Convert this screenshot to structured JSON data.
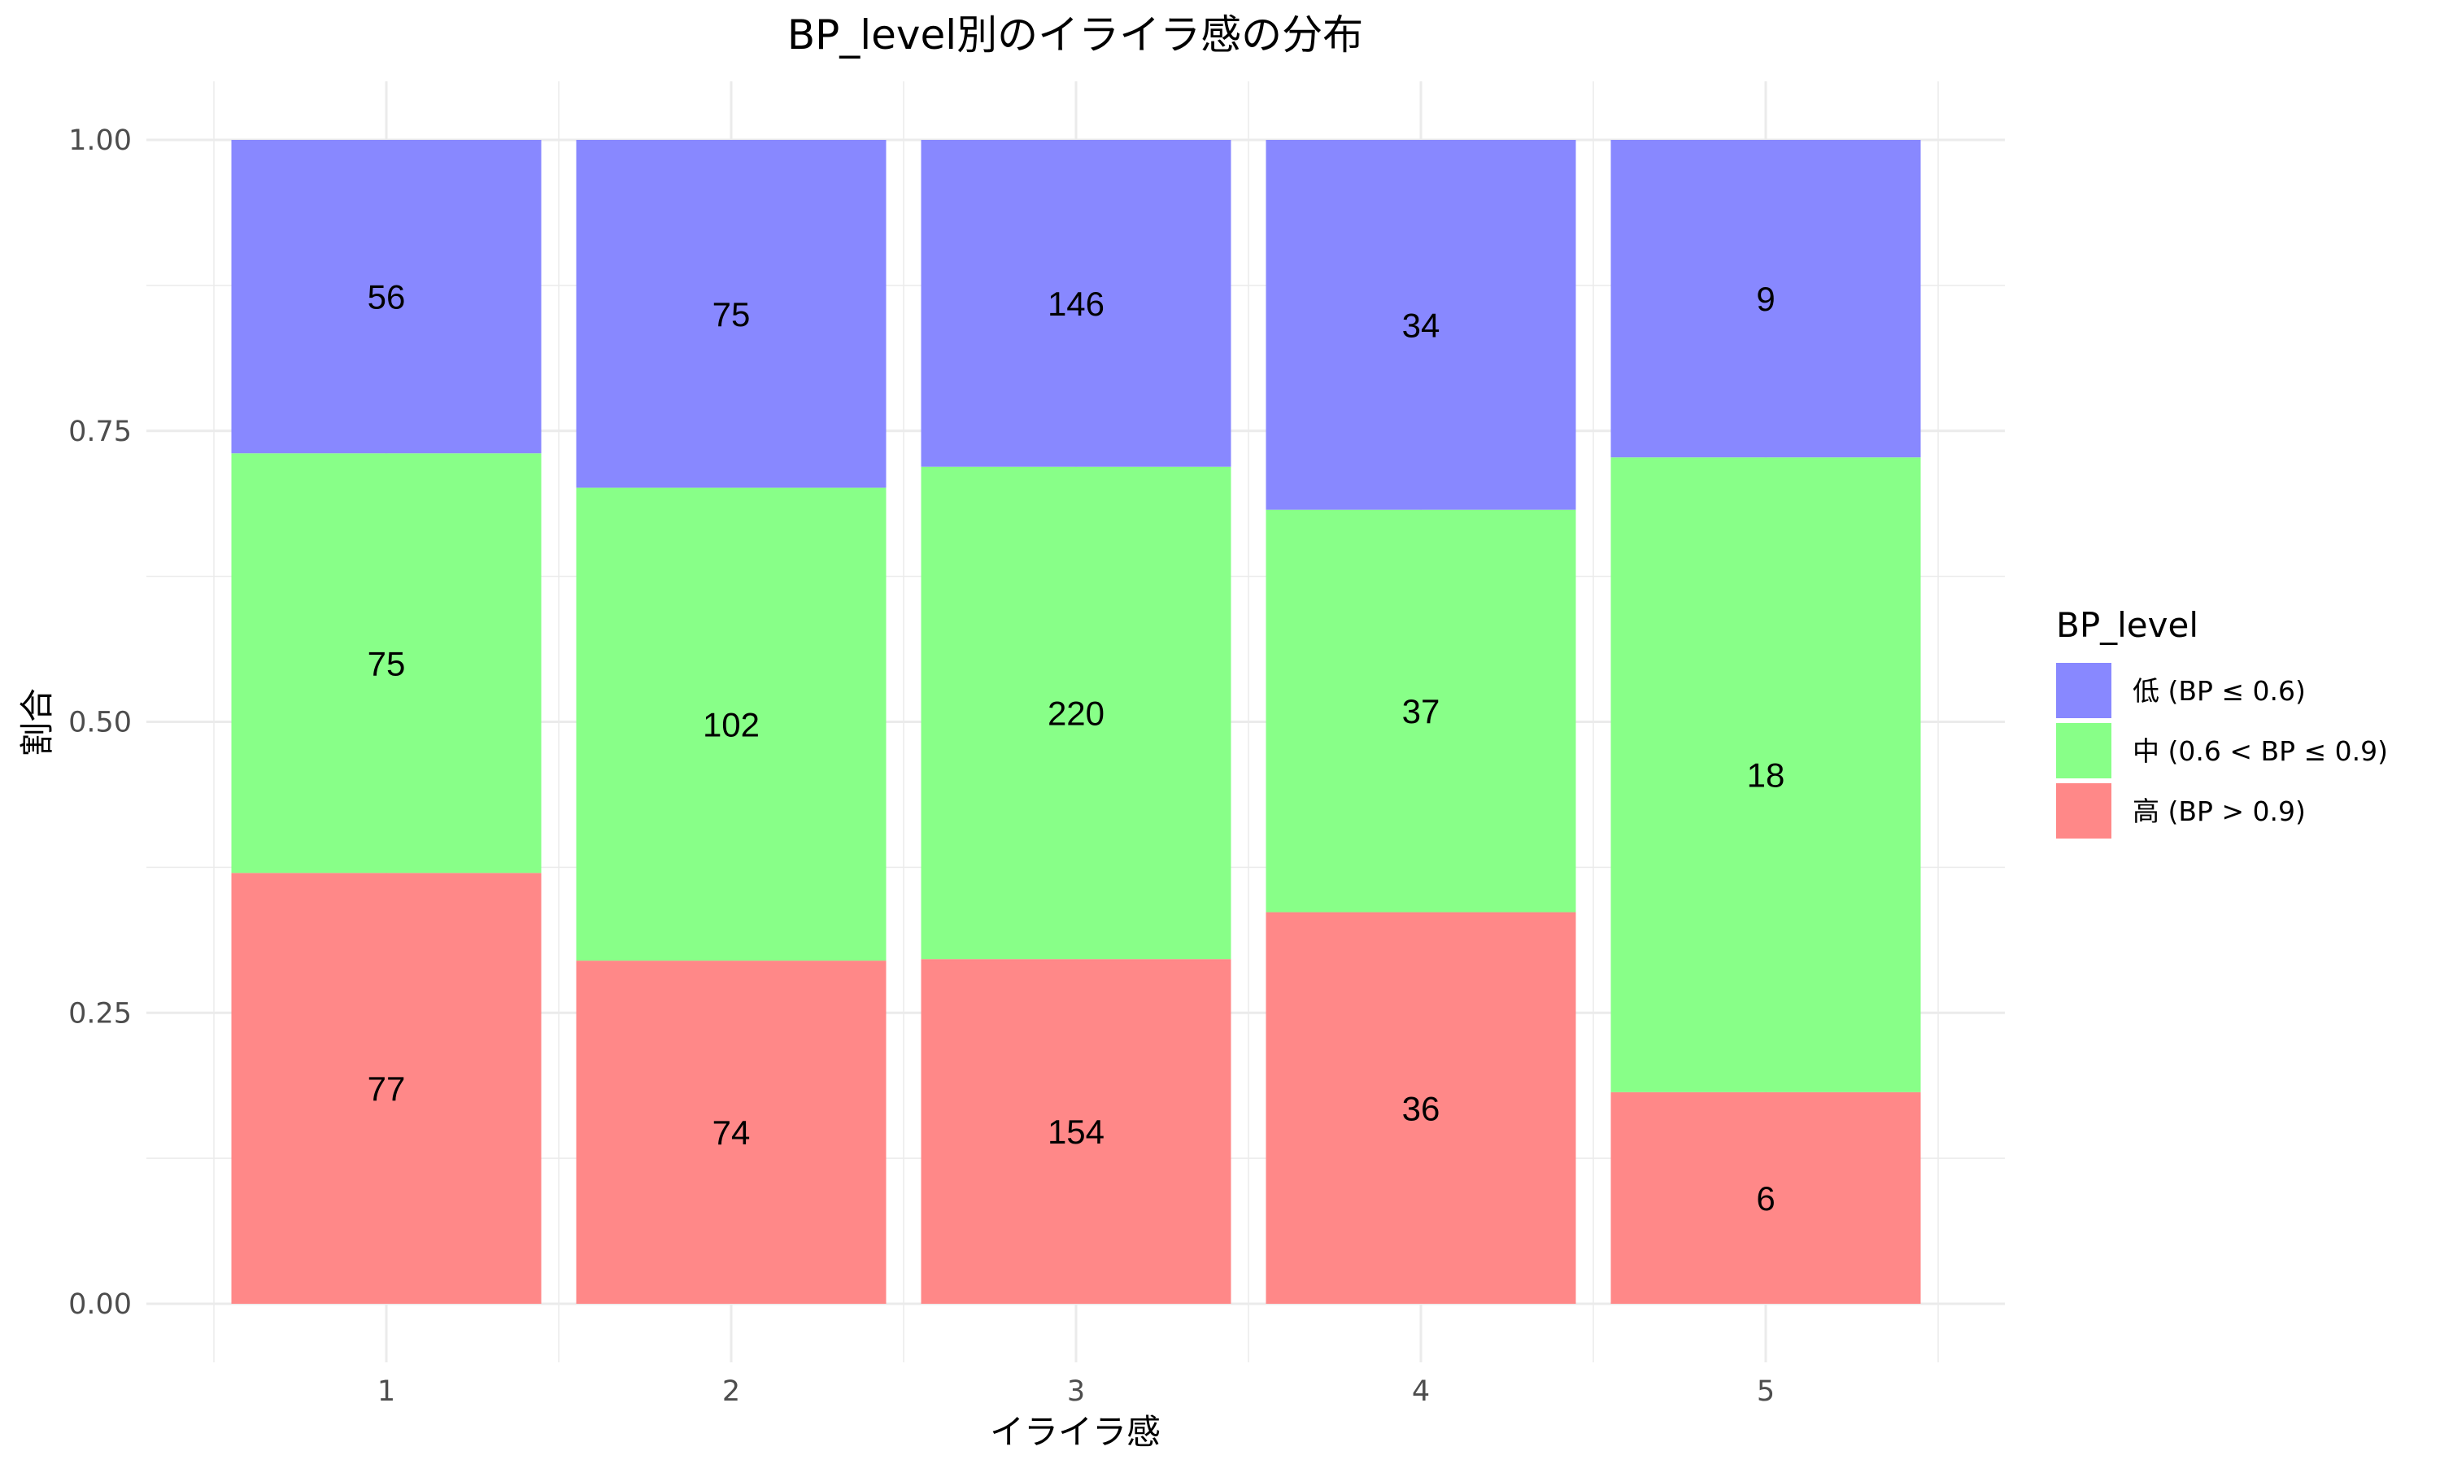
{
  "chart_data": {
    "type": "bar",
    "stacked": true,
    "normalized": true,
    "title": "BP_level別のイライラ感の分布",
    "xlabel": "イライラ感",
    "ylabel": "割合",
    "categories": [
      "1",
      "2",
      "3",
      "4",
      "5"
    ],
    "ylim": [
      0,
      1
    ],
    "yticks": [
      "0.00",
      "0.25",
      "0.50",
      "0.75",
      "1.00"
    ],
    "grid": true,
    "legend": {
      "title": "BP_level",
      "position": "right",
      "items": [
        {
          "label": "低 (BP ≤ 0.6)",
          "color": "#8888ff"
        },
        {
          "label": "中 (0.6 < BP ≤ 0.9)",
          "color": "#88ff88"
        },
        {
          "label": "高 (BP > 0.9)",
          "color": "#ff8888"
        }
      ]
    },
    "series": [
      {
        "name": "高 (BP > 0.9)",
        "color": "#ff8888",
        "values": [
          77,
          74,
          154,
          36,
          6
        ]
      },
      {
        "name": "中 (0.6 < BP ≤ 0.9)",
        "color": "#88ff88",
        "values": [
          75,
          102,
          220,
          37,
          18
        ]
      },
      {
        "name": "低 (BP ≤ 0.6)",
        "color": "#8888ff",
        "values": [
          56,
          75,
          146,
          34,
          9
        ]
      }
    ]
  }
}
